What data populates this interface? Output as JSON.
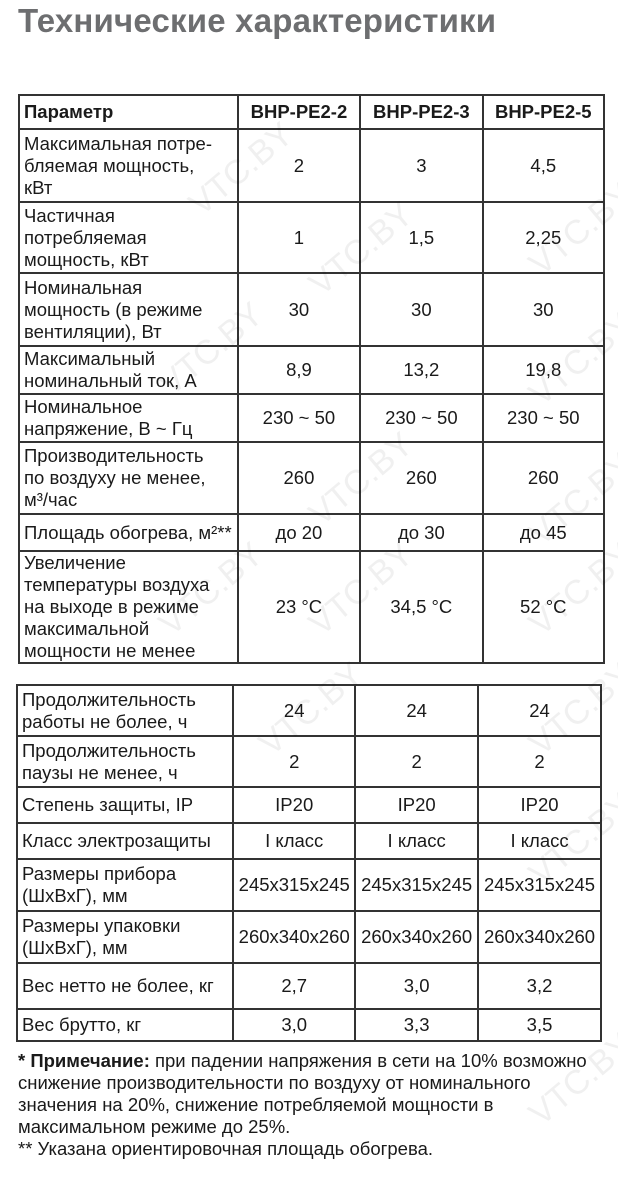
{
  "title": "Технические характеристики",
  "table1": {
    "headers": [
      "Параметр",
      "ВНР-РЕ2-2",
      "ВНР-РЕ2-3",
      "ВНР-РЕ2-5"
    ],
    "rows": [
      [
        "Максимальная потре-\nбляемая мощность,\nкВт",
        "2",
        "3",
        "4,5"
      ],
      [
        "Частичная\nпотребляемая\nмощность, кВт",
        "1",
        "1,5",
        "2,25"
      ],
      [
        "Номинальная\nмощность (в режиме\nвентиляции), Вт",
        "30",
        "30",
        "30"
      ],
      [
        "Максимальный\nноминальный ток, А",
        "8,9",
        "13,2",
        "19,8"
      ],
      [
        "Номинальное\nнапряжение, В ~ Гц",
        "230 ~ 50",
        "230 ~ 50",
        "230 ~ 50"
      ],
      [
        "Производительность\nпо воздуху не менее,\nм³/час",
        "260",
        "260",
        "260"
      ],
      [
        "Площадь обогрева, м²**",
        "до 20",
        "до 30",
        "до 45"
      ],
      [
        "Увеличение\nтемпературы воздуха\nна выходе в режиме\nмаксимальной\nмощности не менее",
        "23 °С",
        "34,5 °С",
        "52 °С"
      ]
    ]
  },
  "table2": {
    "rows": [
      [
        "Продолжительность\nработы не более, ч",
        "24",
        "24",
        "24"
      ],
      [
        "Продолжительность\nпаузы не менее, ч",
        "2",
        "2",
        "2"
      ],
      [
        "Степень защиты, IP",
        "IP20",
        "IP20",
        "IP20"
      ],
      [
        "Класс электрозащиты",
        "I класс",
        "I класс",
        "I класс"
      ],
      [
        "Размеры прибора\n(ШхВхГ), мм",
        "245x315x245",
        "245x315x245",
        "245x315x245"
      ],
      [
        "Размеры упаковки\n(ШхВхГ), мм",
        "260x340x260",
        "260x340x260",
        "260x340x260"
      ],
      [
        "Вес нетто не более, кг",
        "2,7",
        "3,0",
        "3,2"
      ],
      [
        "Вес брутто, кг",
        "3,0",
        "3,3",
        "3,5"
      ]
    ]
  },
  "notes": {
    "note1_label": "* Примечание:",
    "note1_text": " при падении напряжения в сети на 10% возможно снижение производительности по воздуху от номинального значения на 20%, снижение потребляемой мощности в максимальном режиме до 25%.",
    "note2": "** Указана ориентировочная площадь обогрева."
  },
  "watermark": "VTC.BY"
}
